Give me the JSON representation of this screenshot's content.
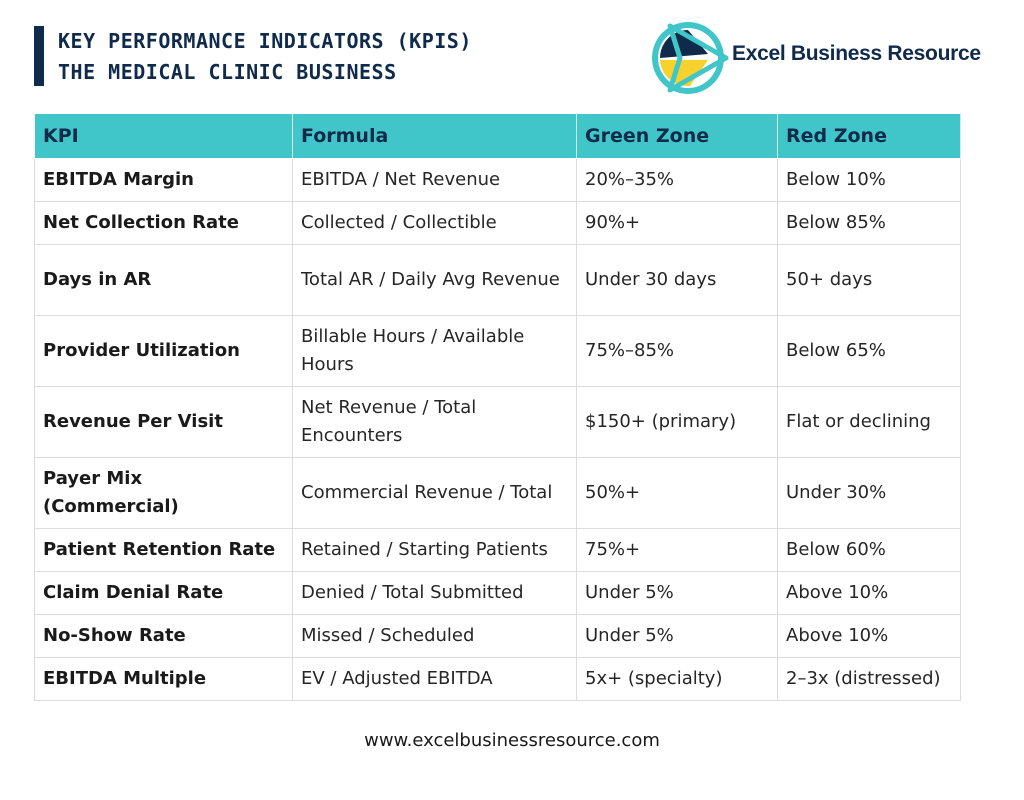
{
  "header": {
    "title_line1": "KEY PERFORMANCE INDICATORS (KPIS)",
    "title_line2": "THE MEDICAL CLINIC BUSINESS"
  },
  "logo": {
    "text": "Excel Business Resource",
    "icon": "excel-business-resource-logo-icon"
  },
  "table": {
    "headers": [
      "KPI",
      "Formula",
      "Green Zone",
      "Red Zone"
    ],
    "rows": [
      {
        "kpi": "EBITDA Margin",
        "formula": "EBITDA / Net Revenue",
        "green": "20%–35%",
        "red": "Below 10%"
      },
      {
        "kpi": "Net Collection Rate",
        "formula": "Collected / Collectible",
        "green": "90%+",
        "red": "Below 85%"
      },
      {
        "kpi": "Days in AR",
        "formula": "Total AR / Daily Avg Revenue",
        "green": "Under 30 days",
        "red": "50+ days"
      },
      {
        "kpi": "Provider Utilization",
        "formula": "Billable Hours / Available Hours",
        "green": "75%–85%",
        "red": "Below 65%"
      },
      {
        "kpi": "Revenue Per Visit",
        "formula": "Net Revenue / Total Encounters",
        "green": "$150+ (primary)",
        "red": "Flat or declining"
      },
      {
        "kpi": "Payer Mix (Commercial)",
        "formula": "Commercial Revenue / Total",
        "green": "50%+",
        "red": "Under 30%"
      },
      {
        "kpi": "Patient Retention Rate",
        "formula": "Retained / Starting Patients",
        "green": "75%+",
        "red": "Below 60%"
      },
      {
        "kpi": "Claim Denial Rate",
        "formula": "Denied / Total Submitted",
        "green": "Under 5%",
        "red": "Above 10%"
      },
      {
        "kpi": "No-Show Rate",
        "formula": "Missed / Scheduled",
        "green": "Under 5%",
        "red": "Above 10%"
      },
      {
        "kpi": "EBITDA Multiple",
        "formula": "EV / Adjusted EBITDA",
        "green": "5x+ (specialty)",
        "red": "2–3x (distressed)"
      }
    ]
  },
  "footer": {
    "url": "www.excelbusinessresource.com"
  },
  "colors": {
    "navy": "#0f2a4a",
    "teal": "#40c6c8",
    "yellow": "#f7d22d"
  }
}
